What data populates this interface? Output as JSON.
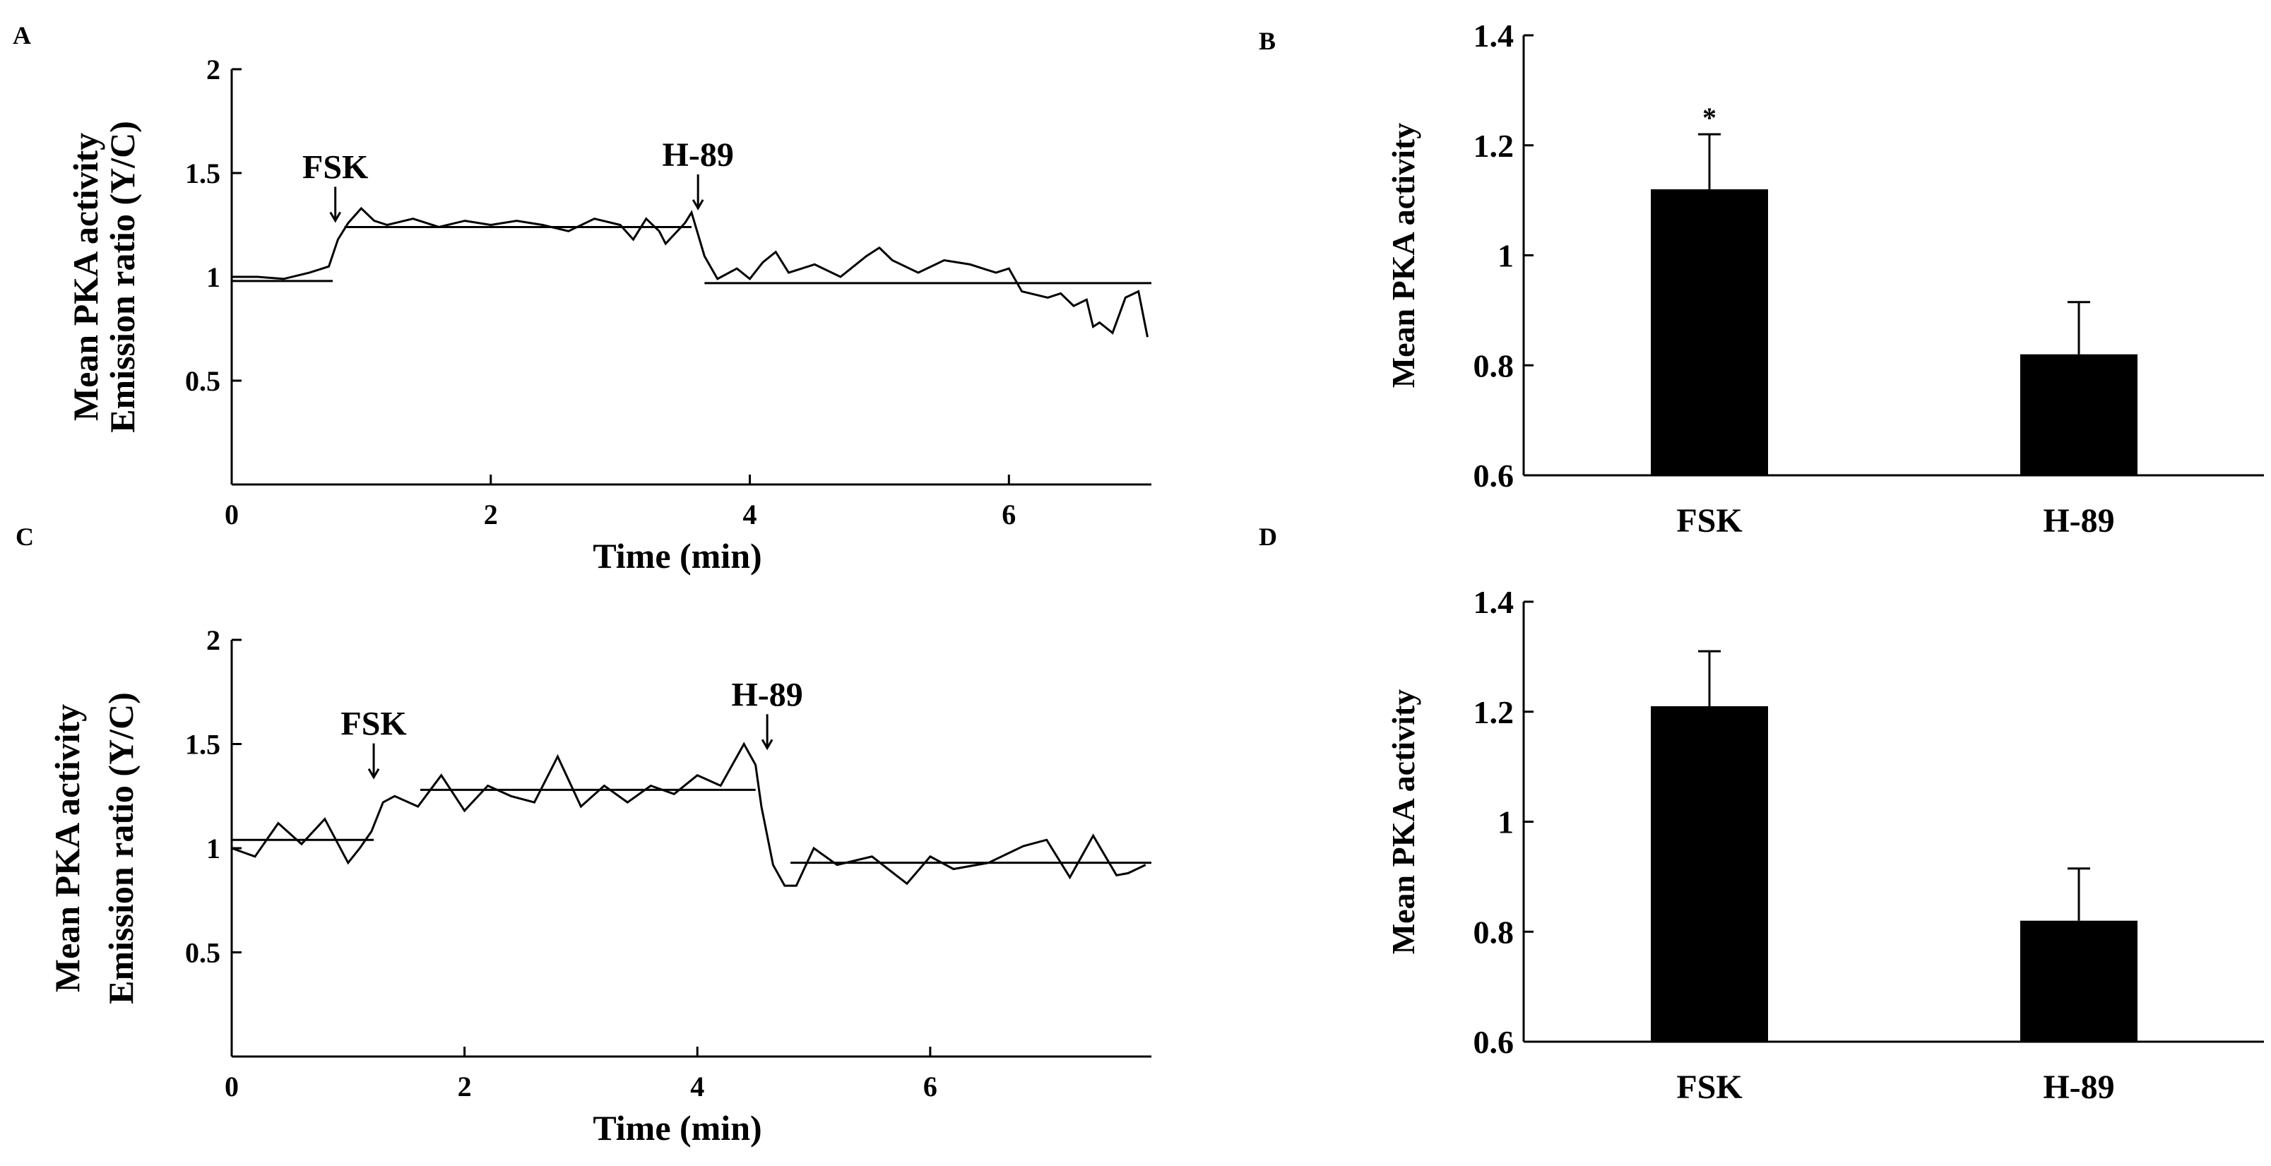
{
  "figure": {
    "panel_labels": [
      "A",
      "B",
      "C",
      "D"
    ]
  },
  "chart_data": [
    {
      "panel": "A",
      "type": "line",
      "xlabel": "Time (min)",
      "ylabel_line1": "Mean PKA activity",
      "ylabel_line2": "Emission ratio (Y/C)",
      "xlim": [
        0,
        7.1
      ],
      "ylim": [
        0,
        2
      ],
      "xticks": [
        0,
        2,
        4,
        6
      ],
      "yticks": [
        0.5,
        1,
        1.5,
        2
      ],
      "ytick_labels": [
        "0.5",
        "1",
        "1.5",
        "2"
      ],
      "series": [
        {
          "name": "emission ratio",
          "x": [
            0,
            0.2,
            0.4,
            0.6,
            0.75,
            0.82,
            0.9,
            1.0,
            1.1,
            1.2,
            1.4,
            1.6,
            1.8,
            2.0,
            2.2,
            2.4,
            2.6,
            2.8,
            3.0,
            3.1,
            3.2,
            3.3,
            3.35,
            3.5,
            3.55,
            3.65,
            3.75,
            3.9,
            4.0,
            4.1,
            4.2,
            4.3,
            4.5,
            4.7,
            4.9,
            5.0,
            5.1,
            5.3,
            5.5,
            5.7,
            5.9,
            6.0,
            6.1,
            6.3,
            6.4,
            6.5,
            6.6,
            6.65,
            6.7,
            6.8,
            6.9,
            7.0,
            7.07
          ],
          "values": [
            1.0,
            1.0,
            0.99,
            1.02,
            1.05,
            1.18,
            1.26,
            1.33,
            1.27,
            1.25,
            1.28,
            1.24,
            1.27,
            1.25,
            1.27,
            1.25,
            1.22,
            1.28,
            1.25,
            1.18,
            1.28,
            1.22,
            1.16,
            1.26,
            1.31,
            1.1,
            0.99,
            1.04,
            0.99,
            1.07,
            1.12,
            1.02,
            1.06,
            1.0,
            1.1,
            1.14,
            1.08,
            1.02,
            1.08,
            1.06,
            1.02,
            1.04,
            0.93,
            0.9,
            0.92,
            0.86,
            0.89,
            0.76,
            0.78,
            0.73,
            0.9,
            0.93,
            0.71
          ]
        }
      ],
      "mean_lines": [
        {
          "x": [
            0,
            0.78
          ],
          "value": 0.98
        },
        {
          "x": [
            0.87,
            3.55
          ],
          "value": 1.24
        },
        {
          "x": [
            3.65,
            7.1
          ],
          "value": 0.97
        }
      ],
      "annotations": [
        {
          "text": "FSK",
          "x": 0.8,
          "arrow_y": 1.25
        },
        {
          "text": "H-89",
          "x": 3.6,
          "arrow_y": 1.31
        }
      ]
    },
    {
      "panel": "B",
      "type": "bar",
      "ylabel": "Mean PKA activity",
      "categories": [
        "FSK",
        "H-89"
      ],
      "values": [
        1.12,
        0.82
      ],
      "errors": [
        0.1,
        0.095
      ],
      "ylim": [
        0.6,
        1.4
      ],
      "yticks": [
        0.6,
        0.8,
        1,
        1.2,
        1.4
      ],
      "ytick_labels": [
        "0.6",
        "0.8",
        "1",
        "1.2",
        "1.4"
      ],
      "significance": [
        "*",
        ""
      ]
    },
    {
      "panel": "C",
      "type": "line",
      "xlabel": "Time (min)",
      "ylabel_line1": "Mean PKA activity",
      "ylabel_line2": "Emission ratio (Y/C)",
      "xlim": [
        0,
        7.9
      ],
      "ylim": [
        0,
        2
      ],
      "xticks": [
        0,
        2,
        4,
        6
      ],
      "yticks": [
        0.5,
        1,
        1.5,
        2
      ],
      "ytick_labels": [
        "0.5",
        "1",
        "1.5",
        "2"
      ],
      "series": [
        {
          "name": "emission ratio",
          "x": [
            0,
            0.2,
            0.4,
            0.6,
            0.8,
            1.0,
            1.1,
            1.2,
            1.3,
            1.4,
            1.6,
            1.8,
            2.0,
            2.2,
            2.4,
            2.6,
            2.8,
            3.0,
            3.2,
            3.4,
            3.6,
            3.8,
            4.0,
            4.2,
            4.4,
            4.5,
            4.55,
            4.65,
            4.75,
            4.85,
            5.0,
            5.2,
            5.5,
            5.8,
            6.0,
            6.2,
            6.5,
            6.8,
            7.0,
            7.2,
            7.4,
            7.6,
            7.7,
            7.85
          ],
          "values": [
            1.0,
            0.96,
            1.12,
            1.02,
            1.14,
            0.93,
            1.0,
            1.08,
            1.22,
            1.25,
            1.2,
            1.35,
            1.18,
            1.3,
            1.25,
            1.22,
            1.44,
            1.2,
            1.3,
            1.22,
            1.3,
            1.26,
            1.35,
            1.3,
            1.5,
            1.4,
            1.2,
            0.92,
            0.82,
            0.82,
            1.0,
            0.92,
            0.96,
            0.83,
            0.96,
            0.9,
            0.93,
            1.01,
            1.04,
            0.86,
            1.06,
            0.87,
            0.88,
            0.92
          ]
        }
      ],
      "mean_lines": [
        {
          "x": [
            0,
            1.22
          ],
          "value": 1.04
        },
        {
          "x": [
            1.62,
            4.5
          ],
          "value": 1.28
        },
        {
          "x": [
            4.8,
            7.9
          ],
          "value": 0.93
        }
      ],
      "annotations": [
        {
          "text": "FSK",
          "x": 1.22,
          "arrow_y": 1.32
        },
        {
          "text": "H-89",
          "x": 4.6,
          "arrow_y": 1.46
        }
      ]
    },
    {
      "panel": "D",
      "type": "bar",
      "ylabel": "Mean PKA activity",
      "categories": [
        "FSK",
        "H-89"
      ],
      "values": [
        1.21,
        0.82
      ],
      "errors": [
        0.1,
        0.095
      ],
      "ylim": [
        0.6,
        1.4
      ],
      "yticks": [
        0.6,
        0.8,
        1,
        1.2,
        1.4
      ],
      "ytick_labels": [
        "0.6",
        "0.8",
        "1",
        "1.2",
        "1.4"
      ],
      "significance": [
        "",
        ""
      ]
    }
  ]
}
